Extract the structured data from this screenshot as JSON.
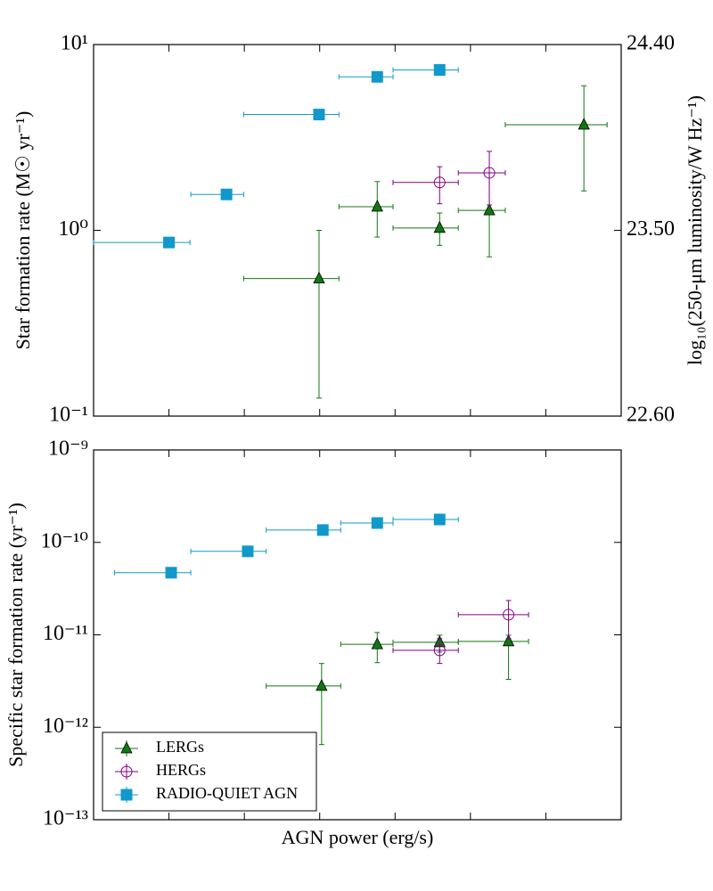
{
  "chart_data": [
    {
      "type": "scatter",
      "ylabel": "Star formation rate (M☉ yr⁻¹)",
      "y2label": "log₁₀(250-μm luminosity/W Hz⁻¹)",
      "xscale": "log",
      "yscale": "log",
      "xlim": [
        1e+42,
        1e+49
      ],
      "xticks": [
        1e+43,
        1e+44,
        1e+45,
        1e+46,
        1e+47,
        1e+48
      ],
      "ylim": [
        0.1,
        10
      ],
      "yticks": [
        {
          "value": 0.1,
          "label": "10⁻¹"
        },
        {
          "value": 1,
          "label": "10⁰"
        },
        {
          "value": 10,
          "label": "10¹"
        }
      ],
      "y2lim": [
        22.6,
        24.4
      ],
      "y2ticks": [
        {
          "value": 22.6,
          "label": "22.60"
        },
        {
          "value": 23.5,
          "label": "23.50"
        },
        {
          "value": 24.4,
          "label": "24.40"
        }
      ],
      "series": [
        {
          "color": "#1199cc",
          "marker": "square",
          "x": [
            1e+43,
            5.8e+43,
            9.8e+44,
            5.8e+45,
            3.9e+46
          ],
          "values": [
            0.86,
            1.56,
            4.2,
            6.7,
            7.3
          ],
          "x_range": [
            [
              1e+42,
              1.9e+43
            ],
            [
              1.95e+43,
              9.8e+43
            ],
            [
              9.8e+43,
              1.8e+45
            ],
            [
              1.8e+45,
              9.4e+45
            ],
            [
              9.4e+45,
              6.9e+46
            ]
          ],
          "y_range": [
            null,
            null,
            null,
            null,
            null
          ]
        },
        {
          "color": "#117711",
          "marker": "triangle",
          "x": [
            9.8e+44,
            5.8e+45,
            3.9e+46,
            1.78e+47,
            3.2e+48
          ],
          "values": [
            0.55,
            1.34,
            1.03,
            1.28,
            3.7
          ],
          "x_range": [
            [
              9.8e+43,
              1.8e+45
            ],
            [
              1.8e+45,
              9.4e+45
            ],
            [
              9.4e+45,
              6.9e+46
            ],
            [
              6.9e+46,
              2.9e+47
            ],
            [
              2.9e+47,
              6.5e+48
            ]
          ],
          "y_range": [
            [
              0.125,
              1.0
            ],
            [
              0.92,
              1.83
            ],
            [
              0.83,
              1.24
            ],
            [
              0.72,
              2.04
            ],
            [
              1.63,
              6.0
            ]
          ]
        },
        {
          "color": "#800080",
          "marker": "circle",
          "x": [
            3.9e+46,
            1.78e+47
          ],
          "values": [
            1.81,
            2.04
          ],
          "x_range": [
            [
              9.4e+45,
              6.9e+46
            ],
            [
              6.9e+46,
              2.9e+47
            ]
          ],
          "y_range": [
            [
              1.39,
              2.2
            ],
            [
              1.37,
              2.66
            ]
          ]
        }
      ]
    },
    {
      "type": "scatter",
      "ylabel": "Specific star formation rate (yr⁻¹)",
      "xlabel": "AGN power (erg/s)",
      "xscale": "log",
      "yscale": "log",
      "legend": "lower left",
      "xlim": [
        1e+42,
        1e+49
      ],
      "xticks": [
        1e+43,
        1e+44,
        1e+45,
        1e+46,
        1e+47,
        1e+48
      ],
      "ylim": [
        1e-13,
        1e-09
      ],
      "yticks": [
        {
          "value": 1e-13,
          "label": "10⁻¹³"
        },
        {
          "value": 1e-12,
          "label": "10⁻¹²"
        },
        {
          "value": 1e-11,
          "label": "10⁻¹¹"
        },
        {
          "value": 1e-10,
          "label": "10⁻¹⁰"
        },
        {
          "value": 1e-09,
          "label": "10⁻⁹"
        }
      ],
      "series": [
        {
          "name": "LERGs",
          "color": "#117711",
          "marker": "triangle",
          "x": [
            1.06e+45,
            5.8e+45,
            3.9e+46,
            3.2e+47
          ],
          "values": [
            2.8e-12,
            7.9e-12,
            8.3e-12,
            8.5e-12
          ],
          "x_range": [
            [
              1.95e+44,
              1.9e+45
            ],
            [
              1.9e+45,
              9.4e+45
            ],
            [
              9.4e+45,
              6.9e+46
            ],
            [
              6.9e+46,
              5.9e+47
            ]
          ],
          "y_range": [
            [
              6.5e-13,
              4.9e-12
            ],
            [
              5e-12,
              1.06e-11
            ],
            [
              6.5e-12,
              9.9e-12
            ],
            [
              3.3e-12,
              9.9e-12
            ]
          ]
        },
        {
          "name": "HERGs",
          "color": "#800080",
          "marker": "circle",
          "x": [
            3.9e+46,
            3.2e+47
          ],
          "values": [
            6.8e-12,
            1.65e-11
          ],
          "x_range": [
            [
              9.4e+45,
              6.9e+46
            ],
            [
              6.9e+46,
              5.9e+47
            ]
          ],
          "y_range": [
            [
              4.9e-12,
              9.1e-12
            ],
            [
              9.1e-12,
              2.35e-11
            ]
          ]
        },
        {
          "name": "RADIO-QUIET AGN",
          "color": "#1199cc",
          "marker": "square",
          "x": [
            1.07e+43,
            1.11e+44,
            1.1e+45,
            5.8e+45,
            3.9e+46
          ],
          "values": [
            4.7e-11,
            8e-11,
            1.36e-10,
            1.62e-10,
            1.77e-10
          ],
          "x_range": [
            [
              1.9e+42,
              1.95e+43
            ],
            [
              1.95e+43,
              1.95e+44
            ],
            [
              1.95e+44,
              1.9e+45
            ],
            [
              1.9e+45,
              9.4e+45
            ],
            [
              9.4e+45,
              6.9e+46
            ]
          ],
          "y_range": [
            null,
            null,
            null,
            null,
            null
          ]
        }
      ]
    }
  ]
}
